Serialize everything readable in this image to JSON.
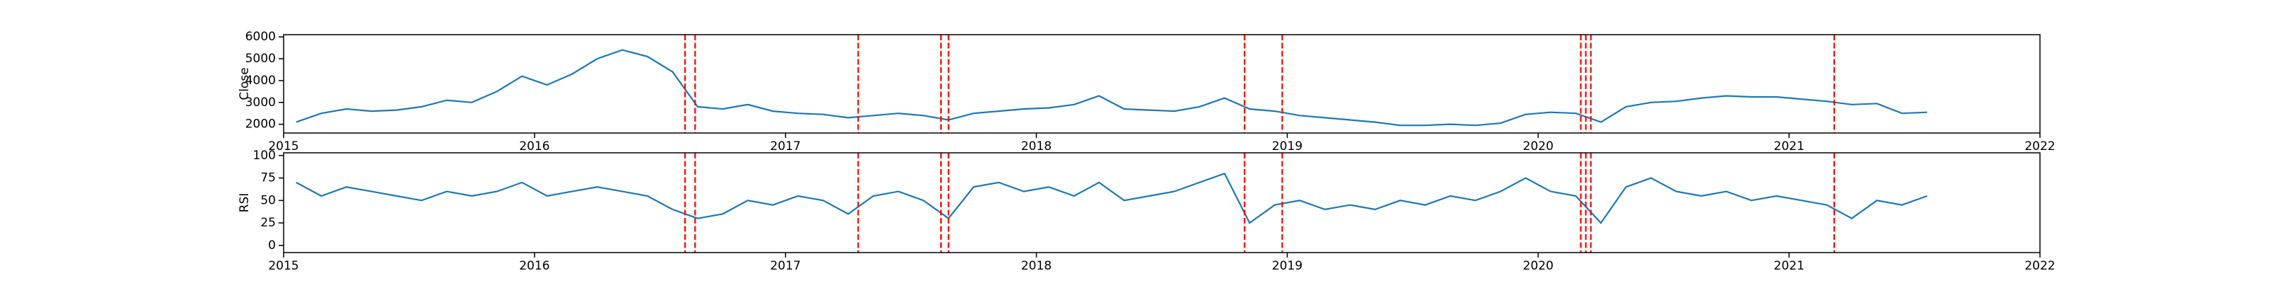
{
  "chart_data": [
    {
      "type": "line",
      "ylabel": "Close",
      "color": "#1f77b4",
      "x": [
        2015.05,
        2015.15,
        2015.25,
        2015.35,
        2015.45,
        2015.55,
        2015.65,
        2015.75,
        2015.85,
        2015.95,
        2016.05,
        2016.15,
        2016.25,
        2016.35,
        2016.45,
        2016.55,
        2016.65,
        2016.75,
        2016.85,
        2016.95,
        2017.05,
        2017.15,
        2017.25,
        2017.35,
        2017.45,
        2017.55,
        2017.65,
        2017.75,
        2017.85,
        2017.95,
        2018.05,
        2018.15,
        2018.25,
        2018.35,
        2018.45,
        2018.55,
        2018.65,
        2018.75,
        2018.85,
        2018.95,
        2019.05,
        2019.15,
        2019.25,
        2019.35,
        2019.45,
        2019.55,
        2019.65,
        2019.75,
        2019.85,
        2019.95,
        2020.05,
        2020.15,
        2020.25,
        2020.35,
        2020.45,
        2020.55,
        2020.65,
        2020.75,
        2020.85,
        2020.95,
        2021.05,
        2021.15,
        2021.25,
        2021.35,
        2021.45,
        2021.55
      ],
      "values": [
        2100,
        2500,
        2700,
        2600,
        2650,
        2800,
        3100,
        3000,
        3500,
        4200,
        3800,
        4300,
        5000,
        5400,
        5100,
        4400,
        2800,
        2700,
        2900,
        2600,
        2500,
        2450,
        2300,
        2400,
        2500,
        2400,
        2200,
        2500,
        2600,
        2700,
        2750,
        2900,
        3300,
        2700,
        2650,
        2600,
        2800,
        3200,
        2700,
        2600,
        2400,
        2300,
        2200,
        2100,
        1950,
        1950,
        2000,
        1950,
        2050,
        2450,
        2550,
        2500,
        2100,
        2800,
        3000,
        3050,
        3200,
        3300,
        3250,
        3250,
        3150,
        3050,
        2900,
        2950,
        2500,
        2550
      ],
      "vlines": [
        2016.6,
        2016.64,
        2017.29,
        2017.62,
        2017.65,
        2018.83,
        2018.98,
        2020.17,
        2020.19,
        2020.21,
        2021.18
      ],
      "vline_color": "#ff0000",
      "xlim": [
        2015,
        2022
      ],
      "xticks": [
        2015,
        2016,
        2017,
        2018,
        2019,
        2020,
        2021,
        2022
      ],
      "ylim": [
        1600,
        6100
      ],
      "yticks": [
        2000,
        3000,
        4000,
        5000,
        6000
      ]
    },
    {
      "type": "line",
      "ylabel": "RSI",
      "color": "#1f77b4",
      "x": [
        2015.05,
        2015.15,
        2015.25,
        2015.35,
        2015.45,
        2015.55,
        2015.65,
        2015.75,
        2015.85,
        2015.95,
        2016.05,
        2016.15,
        2016.25,
        2016.35,
        2016.45,
        2016.55,
        2016.65,
        2016.75,
        2016.85,
        2016.95,
        2017.05,
        2017.15,
        2017.25,
        2017.35,
        2017.45,
        2017.55,
        2017.65,
        2017.75,
        2017.85,
        2017.95,
        2018.05,
        2018.15,
        2018.25,
        2018.35,
        2018.45,
        2018.55,
        2018.65,
        2018.75,
        2018.85,
        2018.95,
        2019.05,
        2019.15,
        2019.25,
        2019.35,
        2019.45,
        2019.55,
        2019.65,
        2019.75,
        2019.85,
        2019.95,
        2020.05,
        2020.15,
        2020.25,
        2020.35,
        2020.45,
        2020.55,
        2020.65,
        2020.75,
        2020.85,
        2020.95,
        2021.05,
        2021.15,
        2021.25,
        2021.35,
        2021.45,
        2021.55
      ],
      "values": [
        70,
        55,
        65,
        60,
        55,
        50,
        60,
        55,
        60,
        70,
        55,
        60,
        65,
        60,
        55,
        40,
        30,
        35,
        50,
        45,
        55,
        50,
        35,
        55,
        60,
        50,
        30,
        65,
        70,
        60,
        65,
        55,
        70,
        50,
        55,
        60,
        70,
        80,
        25,
        45,
        50,
        40,
        45,
        40,
        50,
        45,
        55,
        50,
        60,
        75,
        60,
        55,
        25,
        65,
        75,
        60,
        55,
        60,
        50,
        55,
        50,
        45,
        30,
        50,
        45,
        55
      ],
      "vlines": [
        2016.6,
        2016.64,
        2017.29,
        2017.62,
        2017.65,
        2018.83,
        2018.98,
        2020.17,
        2020.19,
        2020.21,
        2021.18
      ],
      "vline_color": "#ff0000",
      "xlim": [
        2015,
        2022
      ],
      "xticks": [
        2015,
        2016,
        2017,
        2018,
        2019,
        2020,
        2021,
        2022
      ],
      "ylim": [
        -8,
        103
      ],
      "yticks": [
        0,
        25,
        50,
        75,
        100
      ]
    }
  ]
}
